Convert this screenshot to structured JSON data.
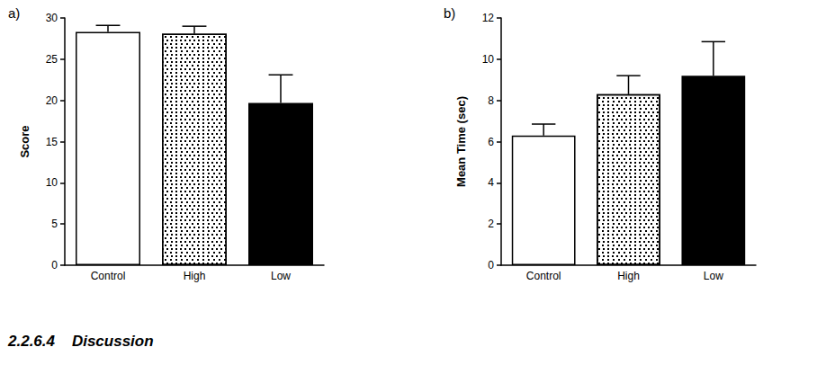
{
  "chart_data": [
    {
      "type": "bar",
      "title": "a)",
      "categories": [
        "Control",
        "High",
        "Low"
      ],
      "values": [
        28.3,
        28.1,
        19.7
      ],
      "errors": [
        0.8,
        0.9,
        3.4
      ],
      "colors": [
        "#ffffff",
        "#ffffff",
        "#000000"
      ],
      "y_label": "Score",
      "ylim": [
        0,
        30
      ],
      "yticks": [
        0,
        5,
        10,
        15,
        20,
        25,
        30
      ],
      "grid": false
    },
    {
      "type": "bar",
      "title": "b)",
      "categories": [
        "Control",
        "High",
        "Low"
      ],
      "values": [
        6.3,
        8.3,
        9.2
      ],
      "errors": [
        0.55,
        0.9,
        1.65
      ],
      "colors": [
        "#ffffff",
        "#ffffff",
        "#000000"
      ],
      "y_label": "Mean Time (sec)",
      "ylim": [
        0,
        12
      ],
      "yticks": [
        0,
        2,
        4,
        6,
        8,
        10,
        12
      ],
      "grid": false
    }
  ],
  "heading": "2.2.6.4    Discussion"
}
